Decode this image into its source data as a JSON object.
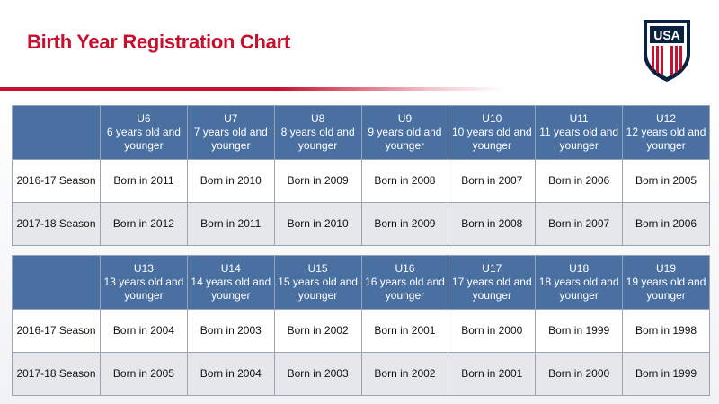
{
  "title": "Birth Year Registration Chart",
  "logo_text": "USA",
  "tables": [
    {
      "headers": [
        {
          "age": "U6",
          "desc": "6 years old and younger"
        },
        {
          "age": "U7",
          "desc": "7 years old and younger"
        },
        {
          "age": "U8",
          "desc": "8 years old and younger"
        },
        {
          "age": "U9",
          "desc": "9 years old and younger"
        },
        {
          "age": "U10",
          "desc": "10 years old and younger"
        },
        {
          "age": "U11",
          "desc": "11 years old and younger"
        },
        {
          "age": "U12",
          "desc": "12 years old and younger"
        }
      ],
      "rows": [
        {
          "season": "2016-17 Season",
          "cells": [
            "Born in 2011",
            "Born in 2010",
            "Born in 2009",
            "Born in 2008",
            "Born in 2007",
            "Born in 2006",
            "Born in 2005"
          ]
        },
        {
          "season": "2017-18 Season",
          "cells": [
            "Born in 2012",
            "Born in 2011",
            "Born in 2010",
            "Born in 2009",
            "Born in 2008",
            "Born in 2007",
            "Born in 2006"
          ]
        }
      ]
    },
    {
      "headers": [
        {
          "age": "U13",
          "desc": "13 years old and younger"
        },
        {
          "age": "U14",
          "desc": "14 years old and younger"
        },
        {
          "age": "U15",
          "desc": "15 years old and younger"
        },
        {
          "age": "U16",
          "desc": "16 years old and younger"
        },
        {
          "age": "U17",
          "desc": "17 years old and younger"
        },
        {
          "age": "U18",
          "desc": "18 years old and younger"
        },
        {
          "age": "U19",
          "desc": "19 years old and younger"
        }
      ],
      "rows": [
        {
          "season": "2016-17 Season",
          "cells": [
            "Born in 2004",
            "Born in 2003",
            "Born in 2002",
            "Born in 2001",
            "Born in 2000",
            "Born in 1999",
            "Born in 1998"
          ]
        },
        {
          "season": "2017-18 Season",
          "cells": [
            "Born in 2005",
            "Born in 2004",
            "Born in 2003",
            "Born in 2002",
            "Born in 2001",
            "Born in 2000",
            "Born in 1999"
          ]
        }
      ]
    }
  ],
  "colors": {
    "title_red": "#c8102e",
    "header_blue": "#4a6fa1",
    "crest_navy": "#0a2240",
    "alt_row": "#e6e7ea"
  }
}
